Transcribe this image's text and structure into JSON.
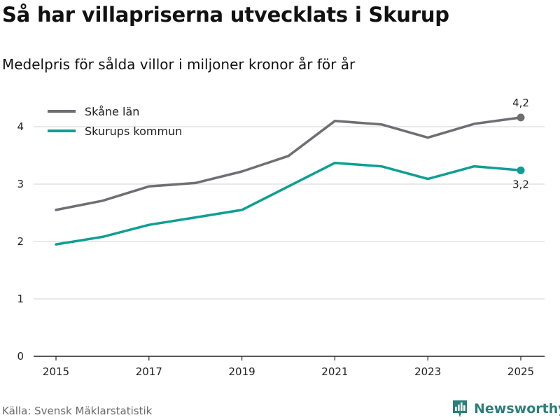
{
  "header": {
    "title": "Så har villapriserna utvecklats i Skurup",
    "subtitle": "Medelpris för sålda villor i miljoner kronor år för år"
  },
  "footer": {
    "source": "Källa: Svensk Mäklarstatistik",
    "brand": "Newsworthy",
    "brand_icon": "bar-chart-logo-icon"
  },
  "colors": {
    "skane": "#6e6e73",
    "skurup": "#0f9e94",
    "grid": "#dcdcdc",
    "axis": "#222222"
  },
  "chart_data": {
    "type": "line",
    "title": "Så har villapriserna utvecklats i Skurup",
    "subtitle": "Medelpris för sålda villor i miljoner kronor år för år",
    "xlabel": "",
    "ylabel": "",
    "x": [
      2015,
      2016,
      2017,
      2018,
      2019,
      2020,
      2021,
      2022,
      2023,
      2024,
      2025
    ],
    "x_ticks": [
      "2015",
      "2017",
      "2019",
      "2021",
      "2023",
      "2025"
    ],
    "y_ticks": [
      "0",
      "1",
      "2",
      "3",
      "4"
    ],
    "ylim": [
      0,
      4.5
    ],
    "grid": true,
    "legend_position": "top-left",
    "series": [
      {
        "name": "Skåne län",
        "values": [
          2.55,
          2.71,
          2.96,
          3.02,
          3.22,
          3.49,
          4.1,
          4.04,
          3.81,
          4.05,
          4.16
        ],
        "end_label": "4,2"
      },
      {
        "name": "Skurups kommun",
        "values": [
          1.95,
          2.08,
          2.29,
          2.42,
          2.55,
          2.96,
          3.37,
          3.31,
          3.09,
          3.31,
          3.24
        ],
        "end_label": "3,2"
      }
    ]
  }
}
